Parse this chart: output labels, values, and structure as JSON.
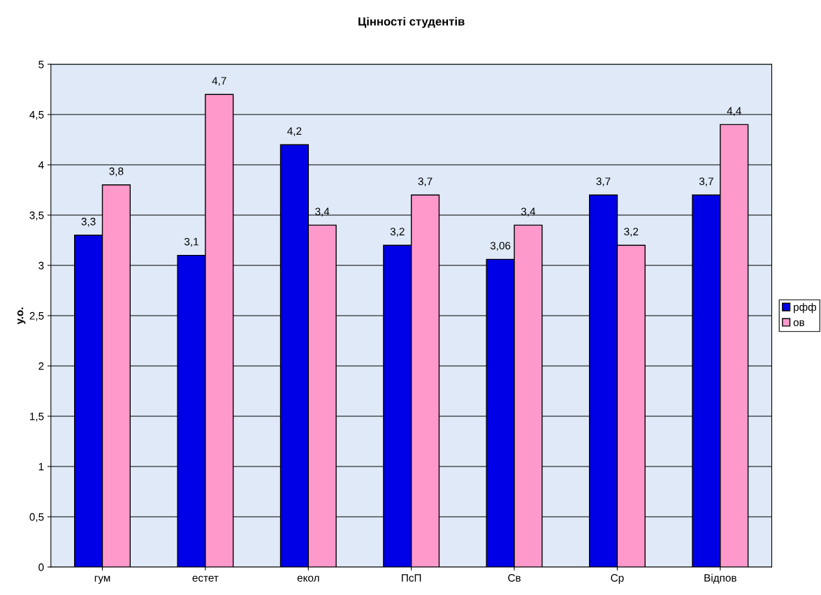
{
  "chart_data": {
    "type": "bar",
    "title": "Цінності студентів",
    "ylabel": "у.о.",
    "categories": [
      "гум",
      "естет",
      "екол",
      "ПсП",
      "Св",
      "Ср",
      "Відпов"
    ],
    "series": [
      {
        "name": "рфф",
        "color": "#0000e6",
        "values": [
          3.3,
          3.1,
          4.2,
          3.2,
          3.06,
          3.7,
          3.7
        ],
        "value_labels": [
          "3,3",
          "3,1",
          "4,2",
          "3,2",
          "3,06",
          "3,7",
          "3,7"
        ]
      },
      {
        "name": "ов",
        "color": "#ff99cc",
        "values": [
          3.8,
          4.7,
          3.4,
          3.7,
          3.4,
          3.2,
          4.4
        ],
        "value_labels": [
          "3,8",
          "4,7",
          "3,4",
          "3,7",
          "3,4",
          "3,2",
          "4,4"
        ]
      }
    ],
    "ylim": [
      0,
      5
    ],
    "yticks": [
      0,
      {
        "value": 0.5,
        "label": "0,5"
      },
      1,
      {
        "value": 1.5,
        "label": "1,5"
      },
      2,
      {
        "value": 2.5,
        "label": "2,5"
      },
      3,
      {
        "value": 3.5,
        "label": "3,5"
      },
      4,
      {
        "value": 4.5,
        "label": "4,5"
      },
      5
    ],
    "grid": "y",
    "legend": "right"
  }
}
